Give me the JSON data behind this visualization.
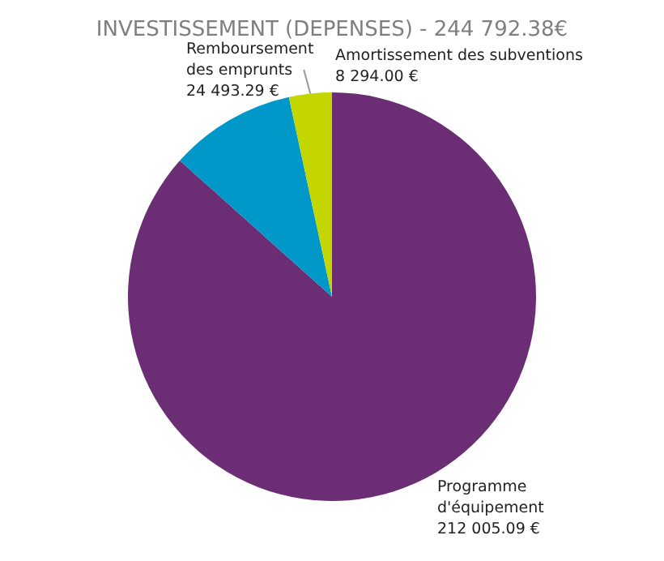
{
  "chart_data": {
    "type": "pie",
    "title": "INVESTISSEMENT (DEPENSES) - 244 792.38€",
    "categories": [
      "Programme d'équipement",
      "Remboursement des emprunts",
      "Amortissement des subventions"
    ],
    "values": [
      212005.09,
      24493.29,
      8294.0
    ],
    "colors": [
      "#6b2d74",
      "#0098c9",
      "#c4d600"
    ],
    "value_labels": [
      "212 005.09 €",
      "24 493.29 €",
      "8 294.00 €"
    ],
    "legend": false
  }
}
